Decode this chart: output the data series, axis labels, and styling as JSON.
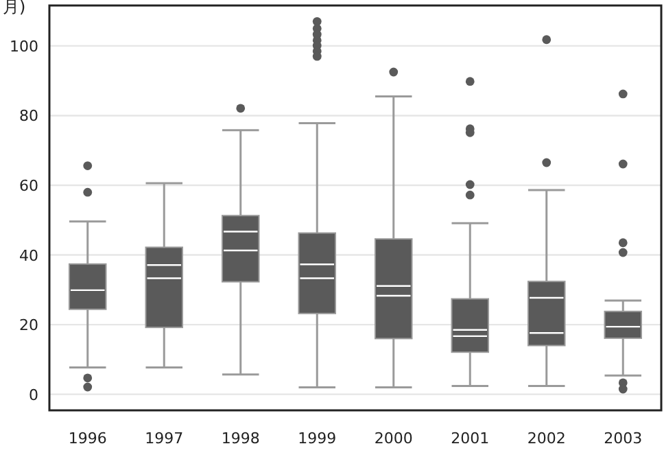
{
  "chart_data": {
    "type": "box",
    "ylabel": "月)",
    "categories": [
      "1996",
      "1997",
      "1998",
      "1999",
      "2000",
      "2001",
      "2002",
      "2003"
    ],
    "color": "#5a5a5a",
    "boxes": [
      {
        "low": 7.7,
        "q1": 24.4,
        "median": 29.9,
        "q3": 37.4,
        "high": 49.6,
        "outliers": [
          65.6,
          58,
          4.7,
          2.1
        ]
      },
      {
        "low": 7.7,
        "q1": 19.2,
        "median": 33.3,
        "q3": 42.2,
        "high": 60.6,
        "mean": 37.1
      },
      {
        "low": 5.7,
        "q1": 32.3,
        "median": 41.3,
        "q3": 51.3,
        "high": 75.8,
        "mean": 46.7,
        "outliers": [
          82.1
        ]
      },
      {
        "low": 2.0,
        "q1": 23.2,
        "median": 33.3,
        "q3": 46.3,
        "high": 77.8,
        "mean": 37.3,
        "outliers": [
          107,
          105,
          103.3,
          101.6,
          100.1,
          98.5,
          97.0
        ]
      },
      {
        "low": 2.0,
        "q1": 16.0,
        "median": 28.3,
        "q3": 44.6,
        "high": 85.5,
        "mean": 31.1,
        "outliers": [
          92.5
        ]
      },
      {
        "low": 2.4,
        "q1": 12.1,
        "median": 16.7,
        "q3": 27.4,
        "high": 49.1,
        "mean": 18.5,
        "outliers": [
          89.8,
          76.2,
          75.1,
          60.2,
          57.2
        ]
      },
      {
        "low": 2.4,
        "q1": 14.0,
        "median": 17.6,
        "q3": 32.4,
        "high": 58.6,
        "mean": 27.7,
        "outliers": [
          101.8,
          66.5
        ]
      },
      {
        "low": 5.4,
        "q1": 16.1,
        "median": 19.4,
        "q3": 23.8,
        "high": 26.9,
        "outliers": [
          86.2,
          66.1,
          43.5,
          40.7,
          3.3,
          1.5
        ]
      }
    ],
    "ylim": [
      -4.6,
      111.6
    ],
    "yticks": [
      0,
      20,
      40,
      60,
      80,
      100
    ],
    "grid": "y"
  }
}
